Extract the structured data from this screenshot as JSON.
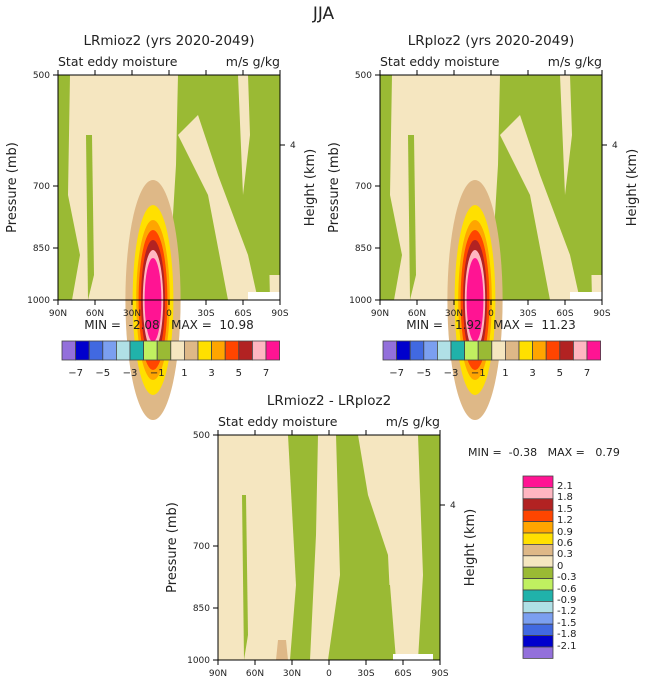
{
  "title": "JJA",
  "colorbar": {
    "colors": [
      "#9370db",
      "#0000cd",
      "#4169e1",
      "#7b9ff0",
      "#b0e0e6",
      "#20b2aa",
      "#c0f060",
      "#9aba34",
      "#f5e6c0",
      "#deb887",
      "#ffe000",
      "#ffa500",
      "#ff4500",
      "#b22222",
      "#ffb6c1",
      "#ff1493"
    ],
    "top_levels": [
      "-7",
      "-5",
      "-3",
      "-1",
      "1",
      "3",
      "5",
      "7"
    ],
    "diff_levels": [
      "2.1",
      "1.8",
      "1.5",
      "1.2",
      "0.9",
      "0.6",
      "0.3",
      "0",
      "-0.3",
      "-0.6",
      "-0.9",
      "-1.2",
      "-1.5",
      "-1.8",
      "-2.1"
    ]
  },
  "chart_data": [
    {
      "type": "heatmap",
      "title": "LRmioz2 (yrs 2020-2049)",
      "left_label": "Stat eddy moisture",
      "right_label": "m/s g/kg",
      "xlabel": "",
      "ylabel": "Pressure (mb)",
      "ylabel_right": "Height (km)",
      "xticks": [
        "90N",
        "60N",
        "30N",
        "0",
        "30S",
        "60S",
        "90S"
      ],
      "yticks": [
        "500",
        "700",
        "850",
        "1000"
      ],
      "ytick_right": "4",
      "min_label": "MIN =",
      "min": "-2.08",
      "max_label": "MAX =",
      "max": "10.98",
      "peak_lat": "30N",
      "peak_pressure": 1000
    },
    {
      "type": "heatmap",
      "title": "LRploz2 (yrs 2020-2049)",
      "left_label": "Stat eddy moisture",
      "right_label": "m/s g/kg",
      "xlabel": "",
      "ylabel": "Pressure (mb)",
      "ylabel_right": "Height (km)",
      "xticks": [
        "90N",
        "60N",
        "30N",
        "0",
        "30S",
        "60S",
        "90S"
      ],
      "yticks": [
        "500",
        "700",
        "850",
        "1000"
      ],
      "ytick_right": "4",
      "min_label": "MIN =",
      "min": "-1.92",
      "max_label": "MAX =",
      "max": "11.23",
      "peak_lat": "30N",
      "peak_pressure": 1000
    },
    {
      "type": "heatmap",
      "title": "LRmioz2 - LRploz2",
      "left_label": "Stat eddy moisture",
      "right_label": "m/s g/kg",
      "xlabel": "",
      "ylabel": "Pressure (mb)",
      "ylabel_right": "Height (km)",
      "xticks": [
        "90N",
        "60N",
        "30N",
        "0",
        "30S",
        "60S",
        "90S"
      ],
      "yticks": [
        "500",
        "700",
        "850",
        "1000"
      ],
      "ytick_right": "4",
      "min_label": "MIN =",
      "min": "-0.38",
      "max_label": "MAX =",
      "max": "0.79"
    }
  ]
}
